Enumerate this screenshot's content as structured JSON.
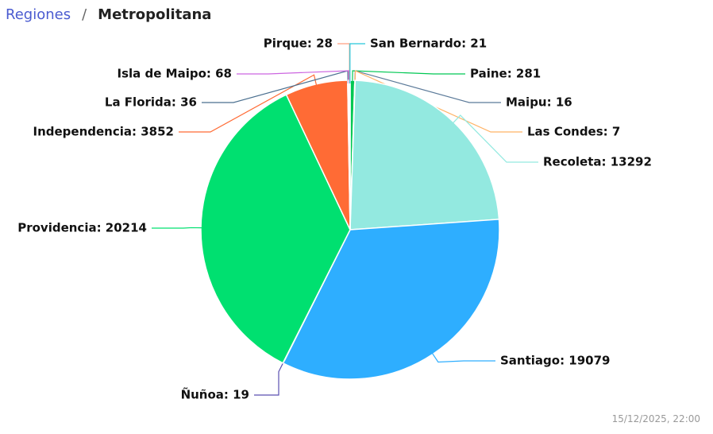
{
  "header": {
    "breadcrumb_link": "Regiones",
    "breadcrumb_separator": "/",
    "breadcrumb_current": "Metropolitana"
  },
  "footer": {
    "timestamp": "15/12/2025, 22:00"
  },
  "chart_data": {
    "type": "pie",
    "labels": [
      "Paine: 281",
      "Maipu: 16",
      "Las Condes: 7",
      "Recoleta: 13292",
      "Santiago: 19079",
      "Ñuñoa: 19",
      "Providencia: 20214",
      "Independencia: 3852",
      "La Florida: 36",
      "Isla de Maipo: 68",
      "Pirque: 28",
      "San Bernardo: 21"
    ],
    "values": [
      281,
      16,
      7,
      13292,
      19079,
      19,
      20214,
      3852,
      36,
      68,
      28,
      21
    ],
    "colors": [
      "#00c853",
      "#5b7a99",
      "#ffb366",
      "#93e9e0",
      "#2eaeff",
      "#5a4fb0",
      "#00e070",
      "#ff6b35",
      "#4a6f8f",
      "#cc66e0",
      "#ff9f80",
      "#26c6da"
    ]
  }
}
